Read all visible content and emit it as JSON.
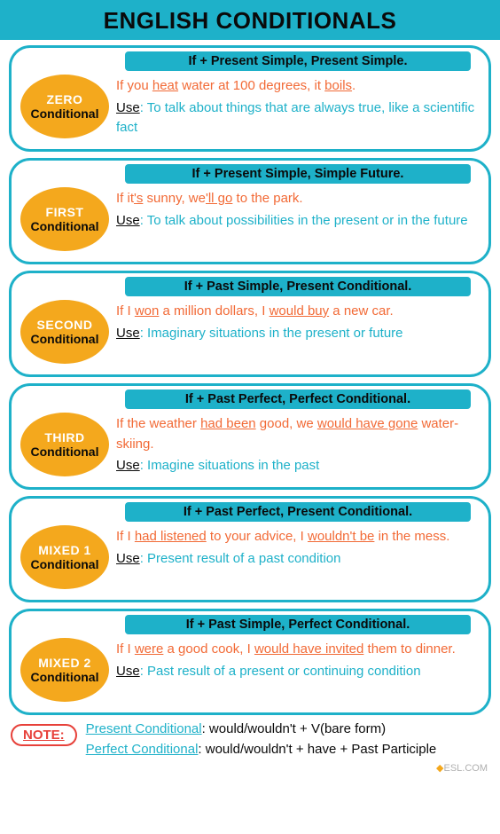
{
  "title": "ENGLISH CONDITIONALS",
  "colors": {
    "accent": "#1eb1c9",
    "badge": "#f4a81d",
    "example": "#f26a36",
    "note_border": "#e7413a",
    "text": "#0a0a0a"
  },
  "cards": [
    {
      "badge_top": "ZERO",
      "badge_bottom": "Conditional",
      "formula": "If + Present Simple, Present Simple.",
      "example_pre": "If you ",
      "example_u1": "heat",
      "example_mid": " water at 100 degrees, it ",
      "example_u2": "boils",
      "example_post": ".",
      "use_label": "Use",
      "use_text": ": To talk about things that are always true, like a scientific fact"
    },
    {
      "badge_top": "FIRST",
      "badge_bottom": "Conditional",
      "formula": "If + Present Simple, Simple Future.",
      "example_pre": "If it",
      "example_u1": "'s",
      "example_mid": " sunny, we",
      "example_u2": "'ll go",
      "example_post": " to the park.",
      "use_label": "Use",
      "use_text": ": To talk about possibilities in the present or in the future"
    },
    {
      "badge_top": "SECOND",
      "badge_bottom": "Conditional",
      "formula": "If + Past Simple, Present Conditional.",
      "example_pre": "If I ",
      "example_u1": "won",
      "example_mid": " a million dollars, I ",
      "example_u2": "would buy",
      "example_post": " a new car.",
      "use_label": "Use",
      "use_text": ": Imaginary situations in the present or future"
    },
    {
      "badge_top": "THIRD",
      "badge_bottom": "Conditional",
      "formula": "If + Past Perfect, Perfect Conditional.",
      "example_pre": "If the weather ",
      "example_u1": "had been",
      "example_mid": " good, we ",
      "example_u2": "would have gone",
      "example_post": " water-skiing.",
      "use_label": "Use",
      "use_text": ": Imagine situations in the past"
    },
    {
      "badge_top": "MIXED 1",
      "badge_bottom": "Conditional",
      "formula": "If + Past Perfect, Present Conditional.",
      "example_pre": "If I ",
      "example_u1": "had listened",
      "example_mid": " to your advice, I ",
      "example_u2": "wouldn't be",
      "example_post": " in the mess.",
      "use_label": "Use",
      "use_text": ": Present result of a past condition"
    },
    {
      "badge_top": "MIXED 2",
      "badge_bottom": "Conditional",
      "formula": "If + Past Simple, Perfect Conditional.",
      "example_pre": "If I ",
      "example_u1": "were",
      "example_mid": " a good cook, I ",
      "example_u2": "would have invited",
      "example_post": " them to dinner.",
      "use_label": "Use",
      "use_text": ": Past result of a present or continuing condition"
    }
  ],
  "note": {
    "label": "NOTE:",
    "line1_key": "Present Conditional",
    "line1_val": ": would/wouldn't + V(bare form)",
    "line2_key": "Perfect Conditional",
    "line2_val": ": would/wouldn't + have + Past Participle"
  },
  "footer": "ESL.COM"
}
